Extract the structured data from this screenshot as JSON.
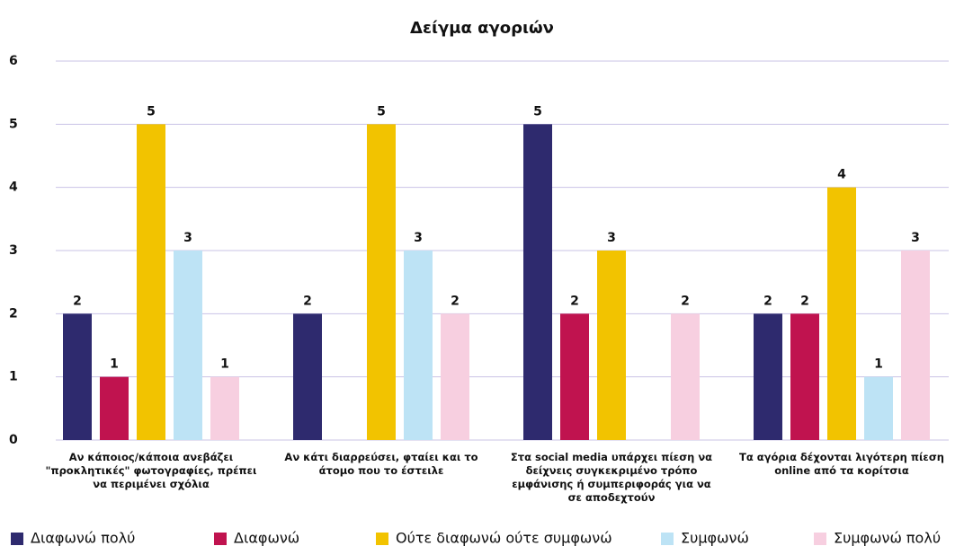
{
  "chart_data": {
    "type": "bar",
    "title": "Δείγμα αγοριών",
    "categories": [
      "Αν κάποιος/κάποια ανεβάζει \"προκλητικές\" φωτογραφίες, πρέπει να περιμένει σχόλια",
      "Αν κάτι διαρρεύσει, φταίει και το άτομο που το έστειλε",
      "Στα social media υπάρχει πίεση να δείχνεις συγκεκριμένο τρόπο εμφάνισης ή συμπεριφοράς για να σε αποδεχτούν",
      "Τα αγόρια δέχονται λιγότερη πίεση online από τα κορίτσια"
    ],
    "series": [
      {
        "name": "Διαφωνώ πολύ",
        "color": "#2e2a6e",
        "values": [
          2,
          2,
          5,
          2
        ]
      },
      {
        "name": "Διαφωνώ",
        "color": "#c0134f",
        "values": [
          1,
          null,
          2,
          2
        ]
      },
      {
        "name": "Ούτε διαφωνώ ούτε συμφωνώ",
        "color": "#f2c300",
        "values": [
          5,
          5,
          3,
          4
        ]
      },
      {
        "name": "Συμφωνώ",
        "color": "#bde3f5",
        "values": [
          3,
          3,
          null,
          1
        ]
      },
      {
        "name": "Συμφωνώ πολύ",
        "color": "#f7cfe0",
        "values": [
          1,
          2,
          2,
          3
        ]
      }
    ],
    "ylim": [
      0,
      6
    ],
    "yticks": [
      0,
      1,
      2,
      3,
      4,
      5,
      6
    ],
    "grid": true,
    "legend": "bottom"
  }
}
